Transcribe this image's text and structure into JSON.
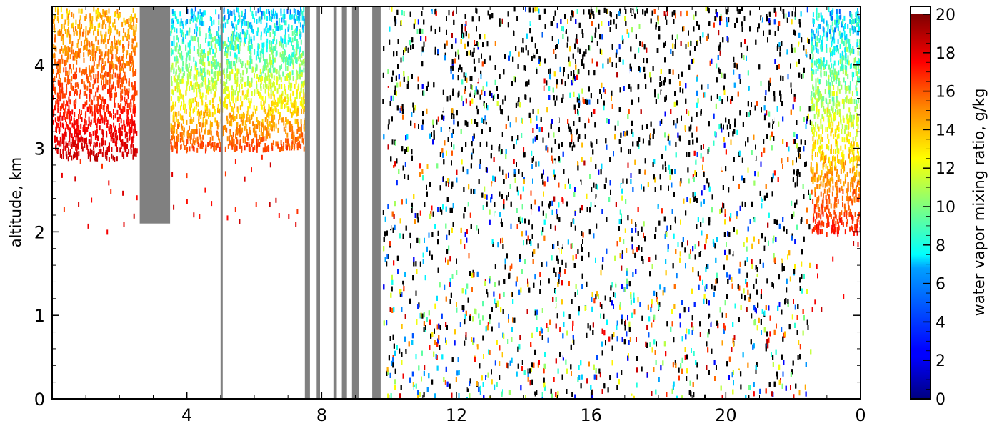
{
  "chart_data": {
    "type": "heatmap",
    "title": "",
    "xlabel": "",
    "ylabel": "altitude, km",
    "x_ticks": [
      "4",
      "8",
      "12",
      "16",
      "20",
      "0"
    ],
    "y_ticks": [
      "0",
      "1",
      "2",
      "3",
      "4"
    ],
    "x_range_hours": [
      0,
      24
    ],
    "x_wraps_at": 24,
    "ylim": [
      0,
      4.7
    ],
    "grid": false,
    "colorbar": {
      "label": "water vapor mixing ratio, g/kg",
      "ticks": [
        "0",
        "2",
        "4",
        "6",
        "8",
        "10",
        "12",
        "14",
        "16",
        "18",
        "20"
      ],
      "range": [
        0,
        20
      ],
      "colormap": "jet",
      "over_color": "#ffffff"
    },
    "colors": {
      "missing_data": "#808080",
      "low_signal": "#000000",
      "background": "#ffffff"
    },
    "regions": [
      {
        "x": [
          0.0,
          2.5
        ],
        "y_base": 2.9,
        "y_top": 4.7,
        "value_range": [
          12,
          19
        ]
      },
      {
        "x": [
          3.5,
          7.5
        ],
        "y_base": 3.0,
        "y_top": 4.7,
        "value_range": [
          3,
          17
        ]
      },
      {
        "x": [
          9.8,
          22.5
        ],
        "y_base": 0.0,
        "y_top": 4.7,
        "value_range": [
          "noisy",
          "noisy"
        ]
      },
      {
        "x": [
          22.5,
          24.0
        ],
        "y_base": 2.0,
        "y_top": 4.7,
        "value_range": [
          3,
          18
        ]
      }
    ],
    "missing_data_columns": [
      {
        "x": [
          2.6,
          3.5
        ],
        "y_base": 2.1
      },
      {
        "x": [
          5.0,
          5.05
        ],
        "y_base": 0.0
      },
      {
        "x": [
          7.5,
          7.65
        ],
        "y_base": 0.0
      },
      {
        "x": [
          7.85,
          7.95
        ],
        "y_base": 0.0
      },
      {
        "x": [
          8.35,
          8.45
        ],
        "y_base": 0.0
      },
      {
        "x": [
          8.6,
          8.75
        ],
        "y_base": 0.0
      },
      {
        "x": [
          8.9,
          9.1
        ],
        "y_base": 0.0
      },
      {
        "x": [
          9.5,
          9.75
        ],
        "y_base": 0.0
      }
    ]
  }
}
